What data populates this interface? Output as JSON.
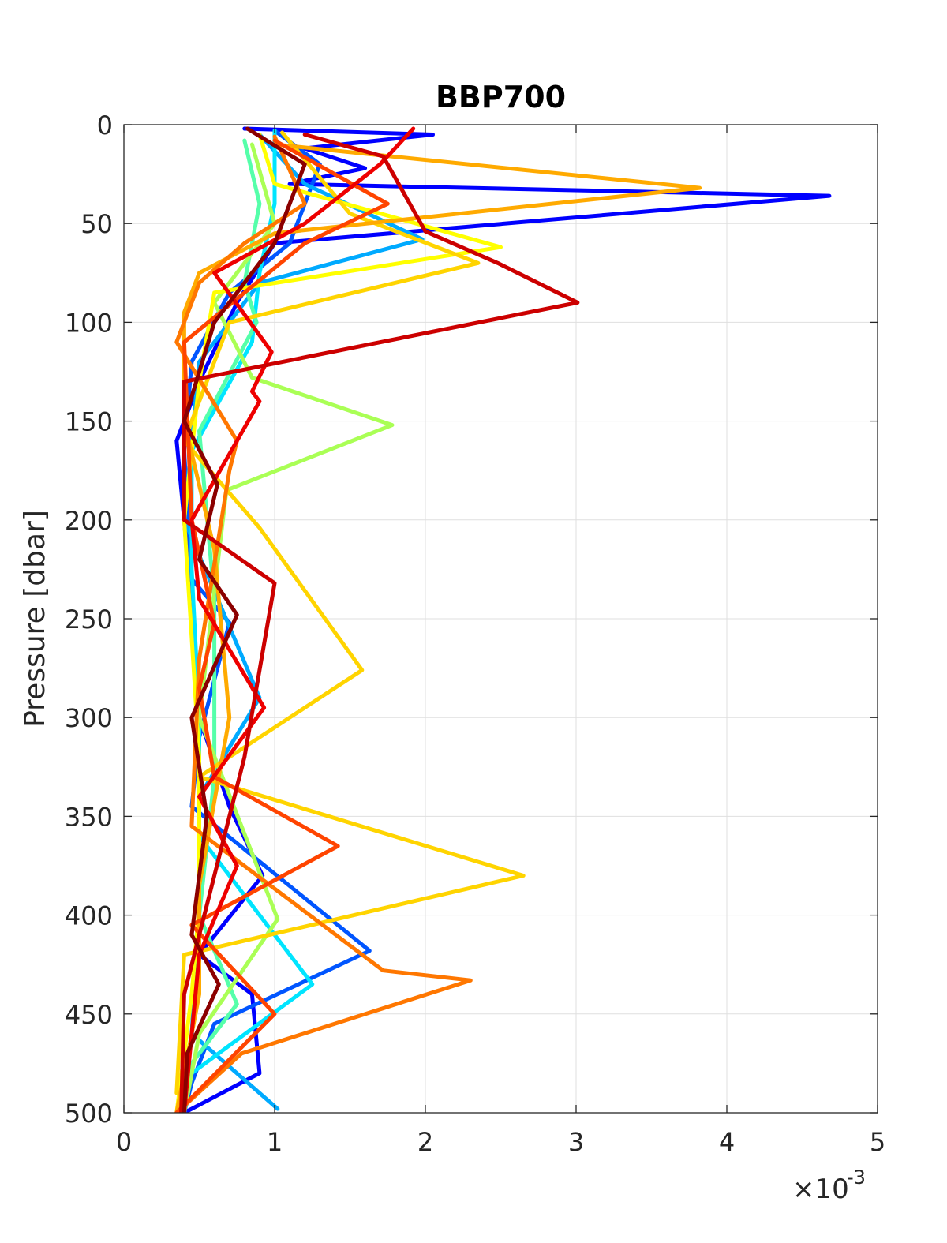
{
  "chart_data": {
    "type": "line",
    "title": "BBP700",
    "ylabel": "Pressure [dbar]",
    "xlabel": "",
    "x_multiplier_base": "×10",
    "x_multiplier_exponent": "-3",
    "xlim": [
      0,
      5
    ],
    "ylim": [
      0,
      500
    ],
    "y_reversed": true,
    "grid": true,
    "x_ticks": [
      "0",
      "1",
      "2",
      "3",
      "4",
      "5"
    ],
    "y_ticks": [
      "0",
      "50",
      "100",
      "150",
      "200",
      "250",
      "300",
      "350",
      "400",
      "450",
      "500"
    ],
    "colormap": [
      "#0000ff",
      "#0055ff",
      "#00aaff",
      "#00e5ff",
      "#55ffaa",
      "#aaff55",
      "#ffff00",
      "#ffd400",
      "#ffaa00",
      "#ff7700",
      "#ff4400",
      "#ee0000",
      "#cc0000",
      "#8b0000"
    ],
    "series": [
      {
        "color": "#0000ff",
        "y": [
          2,
          5,
          12,
          22,
          30,
          36,
          60,
          90,
          130,
          160,
          200,
          250,
          300,
          345,
          380,
          420,
          440,
          480,
          500
        ],
        "x": [
          0.8,
          2.05,
          1.2,
          1.6,
          1.1,
          4.68,
          1.0,
          0.75,
          0.5,
          0.35,
          0.4,
          0.45,
          0.5,
          0.7,
          0.92,
          0.5,
          0.85,
          0.9,
          0.4
        ]
      },
      {
        "color": "#0055ff",
        "y": [
          3,
          20,
          40,
          60,
          85,
          120,
          165,
          230,
          252,
          310,
          345,
          418,
          455,
          485,
          500
        ],
        "x": [
          1.0,
          1.3,
          1.2,
          1.1,
          0.7,
          0.45,
          0.4,
          0.45,
          0.7,
          0.5,
          0.45,
          1.63,
          0.6,
          0.45,
          0.4
        ]
      },
      {
        "color": "#00aaff",
        "y": [
          5,
          30,
          58,
          80,
          120,
          200,
          290,
          340,
          400,
          460,
          498
        ],
        "x": [
          0.9,
          1.2,
          1.98,
          0.9,
          0.5,
          0.4,
          0.9,
          0.5,
          0.5,
          0.45,
          1.02
        ]
      },
      {
        "color": "#00e5ff",
        "y": [
          3,
          40,
          75,
          110,
          165,
          225,
          300,
          360,
          435,
          480,
          500
        ],
        "x": [
          1.0,
          1.0,
          0.9,
          0.85,
          0.45,
          0.45,
          0.5,
          0.5,
          1.25,
          0.45,
          0.4
        ]
      },
      {
        "color": "#55ffaa",
        "y": [
          8,
          40,
          80,
          100,
          155,
          240,
          330,
          400,
          445,
          475,
          500
        ],
        "x": [
          0.8,
          0.9,
          0.8,
          0.88,
          0.5,
          0.6,
          0.6,
          0.5,
          0.75,
          0.45,
          0.35
        ]
      },
      {
        "color": "#aaff55",
        "y": [
          10,
          50,
          70,
          90,
          128,
          152,
          185,
          300,
          402,
          460,
          500
        ],
        "x": [
          0.85,
          1.0,
          0.8,
          0.6,
          0.85,
          1.78,
          0.68,
          0.5,
          1.02,
          0.5,
          0.4
        ]
      },
      {
        "color": "#ffff00",
        "y": [
          5,
          30,
          62,
          85,
          130,
          200,
          320,
          378,
          395,
          440,
          500
        ],
        "x": [
          0.9,
          1.0,
          2.5,
          0.6,
          0.5,
          0.4,
          0.5,
          0.5,
          0.5,
          0.45,
          0.35
        ]
      },
      {
        "color": "#ffd400",
        "y": [
          4,
          45,
          70,
          100,
          160,
          204,
          276,
          330,
          380,
          420,
          490
        ],
        "x": [
          1.05,
          1.5,
          2.35,
          0.7,
          0.4,
          0.9,
          1.58,
          0.5,
          2.65,
          0.4,
          0.35
        ]
      },
      {
        "color": "#ffaa00",
        "y": [
          10,
          32,
          55,
          75,
          95,
          150,
          215,
          300,
          385,
          440,
          500
        ],
        "x": [
          1.0,
          3.82,
          1.0,
          0.5,
          0.4,
          0.4,
          0.6,
          0.7,
          0.5,
          0.5,
          0.35
        ]
      },
      {
        "color": "#ff7700",
        "y": [
          6,
          40,
          60,
          80,
          110,
          160,
          175,
          270,
          355,
          428,
          433,
          470,
          500
        ],
        "x": [
          1.0,
          1.2,
          0.8,
          0.5,
          0.35,
          0.75,
          0.7,
          0.5,
          0.45,
          1.72,
          2.3,
          0.78,
          0.35
        ]
      },
      {
        "color": "#ff4400",
        "y": [
          8,
          40,
          60,
          110,
          200,
          252,
          285,
          330,
          365,
          405,
          450,
          500
        ],
        "x": [
          1.0,
          1.75,
          1.2,
          0.4,
          0.45,
          0.6,
          0.5,
          0.6,
          1.42,
          0.45,
          1.0,
          0.35
        ]
      },
      {
        "color": "#ee0000",
        "y": [
          2,
          20,
          50,
          75,
          115,
          135,
          140,
          200,
          240,
          295,
          340,
          375,
          420,
          500
        ],
        "x": [
          1.92,
          1.7,
          1.2,
          0.6,
          0.98,
          0.85,
          0.9,
          0.45,
          0.5,
          0.93,
          0.5,
          0.75,
          0.5,
          0.4
        ]
      },
      {
        "color": "#cc0000",
        "y": [
          5,
          16,
          54,
          70,
          90,
          130,
          200,
          232,
          320,
          440,
          500
        ],
        "x": [
          1.2,
          1.72,
          2.0,
          2.48,
          3.01,
          0.4,
          0.4,
          1.0,
          0.8,
          0.4,
          0.38
        ]
      },
      {
        "color": "#8b0000",
        "y": [
          2,
          20,
          40,
          60,
          80,
          100,
          150,
          182,
          220,
          248,
          300,
          350,
          410,
          435,
          470,
          500
        ],
        "x": [
          0.82,
          1.2,
          1.1,
          1.0,
          0.8,
          0.6,
          0.4,
          0.62,
          0.5,
          0.75,
          0.45,
          0.55,
          0.45,
          0.63,
          0.42,
          0.4
        ]
      }
    ]
  }
}
